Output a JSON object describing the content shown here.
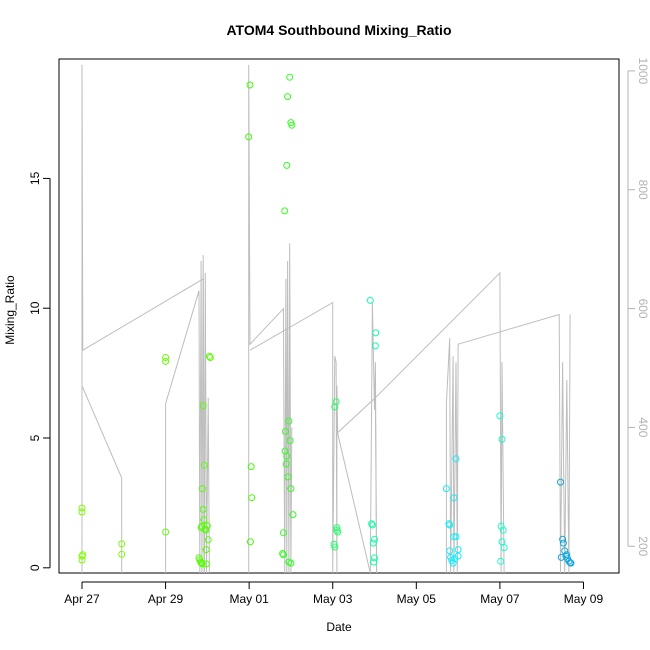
{
  "chart_data": {
    "type": "scatter",
    "title": "ATOM4 Southbound Mixing_Ratio",
    "xlabel": "Date",
    "ylabel": "Mixing_Ratio",
    "x_ticks": [
      {
        "label": "Apr 27",
        "value": 0
      },
      {
        "label": "Apr 29",
        "value": 2
      },
      {
        "label": "May 01",
        "value": 4
      },
      {
        "label": "May 03",
        "value": 6
      },
      {
        "label": "May 05",
        "value": 8
      },
      {
        "label": "May 07",
        "value": 10
      },
      {
        "label": "May 09",
        "value": 12
      }
    ],
    "xlim": [
      -0.55,
      12.85
    ],
    "y_ticks": [
      0,
      5,
      10,
      15
    ],
    "ylim": [
      -0.2,
      19.6
    ],
    "y2_ticks": [
      200,
      400,
      600,
      800,
      1000
    ],
    "y2lim": [
      1020,
      155
    ],
    "y2_reversed": true,
    "grid": false,
    "points": [
      [
        0.0,
        2.3,
        "#7fff00"
      ],
      [
        0.0,
        2.15,
        "#7fff00"
      ],
      [
        0.02,
        0.5,
        "#7fff00"
      ],
      [
        0.0,
        0.45,
        "#7fff00"
      ],
      [
        0.0,
        0.3,
        "#7fff00"
      ],
      [
        0.95,
        0.92,
        "#7cff00"
      ],
      [
        0.95,
        0.52,
        "#7cff00"
      ],
      [
        2.0,
        8.1,
        "#66ff00"
      ],
      [
        2.0,
        7.95,
        "#66ff00"
      ],
      [
        2.0,
        1.38,
        "#66ff00"
      ],
      [
        2.8,
        0.38,
        "#55ff00"
      ],
      [
        2.82,
        0.3,
        "#55ff00"
      ],
      [
        2.84,
        0.22,
        "#55ff00"
      ],
      [
        2.86,
        0.18,
        "#55ff00"
      ],
      [
        2.88,
        0.15,
        "#55ff00"
      ],
      [
        2.85,
        1.55,
        "#55ff00"
      ],
      [
        2.87,
        1.6,
        "#55ff00"
      ],
      [
        2.88,
        3.05,
        "#55ff00"
      ],
      [
        2.9,
        2.25,
        "#55ff00"
      ],
      [
        2.9,
        6.25,
        "#55ff00"
      ],
      [
        2.92,
        1.85,
        "#55ff00"
      ],
      [
        2.93,
        3.95,
        "#55ff00"
      ],
      [
        2.95,
        1.5,
        "#55ff00"
      ],
      [
        2.96,
        1.45,
        "#55ff00"
      ],
      [
        2.97,
        0.7,
        "#55ff00"
      ],
      [
        2.98,
        0.15,
        "#55ff00"
      ],
      [
        3.0,
        1.62,
        "#55ff00"
      ],
      [
        3.02,
        1.08,
        "#55ff00"
      ],
      [
        3.05,
        8.15,
        "#55ff00"
      ],
      [
        3.07,
        8.1,
        "#55ff00"
      ],
      [
        3.99,
        16.6,
        "#3fff00"
      ],
      [
        4.02,
        18.6,
        "#3fff00"
      ],
      [
        4.05,
        3.9,
        "#3fff00"
      ],
      [
        4.06,
        2.7,
        "#3fff00"
      ],
      [
        4.03,
        1.0,
        "#3fff00"
      ],
      [
        4.8,
        0.55,
        "#33ff22"
      ],
      [
        4.82,
        0.5,
        "#33ff22"
      ],
      [
        4.85,
        13.75,
        "#33ff22"
      ],
      [
        4.86,
        4.5,
        "#33ff22"
      ],
      [
        4.87,
        5.25,
        "#33ff22"
      ],
      [
        4.89,
        4.0,
        "#33ff22"
      ],
      [
        4.9,
        4.3,
        "#33ff22"
      ],
      [
        4.9,
        15.5,
        "#33ff22"
      ],
      [
        4.92,
        18.15,
        "#33ff22"
      ],
      [
        4.93,
        3.5,
        "#33ff22"
      ],
      [
        4.95,
        5.65,
        "#33ff22"
      ],
      [
        4.97,
        18.9,
        "#33ff22"
      ],
      [
        4.98,
        4.9,
        "#33ff22"
      ],
      [
        5.0,
        3.05,
        "#33ff22"
      ],
      [
        5.0,
        17.15,
        "#33ff22"
      ],
      [
        5.02,
        17.05,
        "#33ff22"
      ],
      [
        5.05,
        2.05,
        "#33ff22"
      ],
      [
        4.95,
        0.22,
        "#33ff22"
      ],
      [
        5.0,
        0.18,
        "#33ff22"
      ],
      [
        4.82,
        1.35,
        "#33ff22"
      ],
      [
        6.03,
        0.9,
        "#22ff66"
      ],
      [
        6.05,
        0.8,
        "#22ff66"
      ],
      [
        6.05,
        6.2,
        "#22ff66"
      ],
      [
        6.08,
        6.4,
        "#22ff66"
      ],
      [
        6.1,
        1.55,
        "#22ff66"
      ],
      [
        6.1,
        1.45,
        "#22ff66"
      ],
      [
        6.12,
        1.38,
        "#22ff66"
      ],
      [
        6.9,
        10.3,
        "#11ffaa"
      ],
      [
        6.93,
        1.7,
        "#11ffaa"
      ],
      [
        6.95,
        1.65,
        "#11ffaa"
      ],
      [
        6.97,
        0.95,
        "#11ffaa"
      ],
      [
        6.98,
        0.22,
        "#11ffaa"
      ],
      [
        7.0,
        1.1,
        "#11ffaa"
      ],
      [
        7.0,
        0.38,
        "#11ffaa"
      ],
      [
        7.02,
        8.55,
        "#11ffaa"
      ],
      [
        7.03,
        9.05,
        "#11ffaa"
      ],
      [
        10.0,
        5.85,
        "#11ffcc"
      ],
      [
        10.03,
        1.6,
        "#11ffcc"
      ],
      [
        10.05,
        1.0,
        "#11ffcc"
      ],
      [
        10.05,
        4.95,
        "#11ffcc"
      ],
      [
        10.08,
        1.45,
        "#11ffcc"
      ],
      [
        10.1,
        0.78,
        "#11ffcc"
      ],
      [
        10.02,
        0.25,
        "#11ffcc"
      ],
      [
        11.45,
        3.3,
        "#0da6e0"
      ],
      [
        11.5,
        1.1,
        "#0da6e0"
      ],
      [
        11.52,
        0.95,
        "#0da6e0"
      ],
      [
        11.55,
        0.65,
        "#0da6e0"
      ],
      [
        11.58,
        0.45,
        "#0da6e0"
      ],
      [
        11.6,
        0.5,
        "#0da6e0"
      ],
      [
        11.62,
        0.35,
        "#0da6e0"
      ],
      [
        11.65,
        0.25,
        "#0da6e0"
      ],
      [
        11.68,
        0.2,
        "#0da6e0"
      ],
      [
        11.7,
        0.18,
        "#0da6e0"
      ],
      [
        11.47,
        0.4,
        "#0da6e0"
      ],
      [
        8.72,
        3.05,
        "#11eeff"
      ],
      [
        8.78,
        1.7,
        "#11eeff"
      ],
      [
        8.8,
        1.65,
        "#11eeff"
      ],
      [
        8.8,
        0.65,
        "#11eeff"
      ],
      [
        8.82,
        0.4,
        "#11eeff"
      ],
      [
        8.85,
        0.28,
        "#11eeff"
      ],
      [
        8.88,
        0.18,
        "#11eeff"
      ],
      [
        8.9,
        2.7,
        "#11eeff"
      ],
      [
        8.9,
        1.2,
        "#11eeff"
      ],
      [
        8.95,
        1.2,
        "#11eeff"
      ],
      [
        8.95,
        4.2,
        "#11eeff"
      ],
      [
        9.0,
        0.45,
        "#11eeff"
      ],
      [
        9.0,
        0.7,
        "#11eeff"
      ],
      [
        8.92,
        0.35,
        "#11eeff"
      ]
    ],
    "pressure_segments": [
      [
        [
          0.0,
          155
        ],
        [
          0.0,
          1010
        ],
        [
          0.0,
          470
        ],
        [
          0.95,
          315
        ],
        [
          0.95,
          155
        ]
      ],
      [
        [
          0.0,
          1010
        ],
        [
          0.02,
          530
        ],
        [
          2.9,
          650
        ],
        [
          2.92,
          155
        ]
      ],
      [
        [
          2.0,
          155
        ],
        [
          2.0,
          440
        ],
        [
          2.8,
          630
        ],
        [
          2.82,
          155
        ],
        [
          2.85,
          680
        ],
        [
          2.87,
          155
        ],
        [
          2.9,
          690
        ],
        [
          2.93,
          155
        ],
        [
          2.95,
          660
        ],
        [
          2.98,
          155
        ],
        [
          3.02,
          450
        ],
        [
          3.05,
          155
        ]
      ],
      [
        [
          3.99,
          155
        ],
        [
          3.99,
          1010
        ],
        [
          4.02,
          540
        ],
        [
          4.82,
          600
        ],
        [
          4.85,
          155
        ],
        [
          4.88,
          650
        ],
        [
          4.9,
          155
        ],
        [
          4.92,
          680
        ],
        [
          4.95,
          155
        ],
        [
          4.97,
          710
        ],
        [
          5.0,
          155
        ],
        [
          5.02,
          400
        ]
      ],
      [
        [
          4.02,
          530
        ],
        [
          6.0,
          610
        ],
        [
          6.0,
          155
        ],
        [
          6.05,
          520
        ],
        [
          6.08,
          510
        ],
        [
          6.1,
          155
        ],
        [
          6.1,
          470
        ],
        [
          6.12,
          390
        ],
        [
          6.9,
          155
        ],
        [
          6.95,
          610
        ],
        [
          7.0,
          430
        ],
        [
          7.02,
          510
        ],
        [
          7.05,
          155
        ]
      ],
      [
        [
          6.1,
          390
        ],
        [
          7.02,
          450
        ],
        [
          7.05,
          155
        ]
      ],
      [
        [
          7.02,
          450
        ],
        [
          10.0,
          660
        ],
        [
          10.03,
          155
        ],
        [
          10.05,
          510
        ],
        [
          10.1,
          155
        ]
      ],
      [
        [
          8.72,
          155
        ],
        [
          8.72,
          440
        ],
        [
          8.8,
          550
        ],
        [
          8.82,
          155
        ],
        [
          8.88,
          520
        ],
        [
          8.9,
          155
        ],
        [
          8.95,
          510
        ],
        [
          8.98,
          155
        ],
        [
          9.0,
          540
        ],
        [
          11.42,
          590
        ],
        [
          11.45,
          155
        ],
        [
          11.5,
          510
        ],
        [
          11.55,
          155
        ],
        [
          11.6,
          480
        ],
        [
          11.65,
          155
        ],
        [
          11.68,
          590
        ]
      ]
    ]
  }
}
